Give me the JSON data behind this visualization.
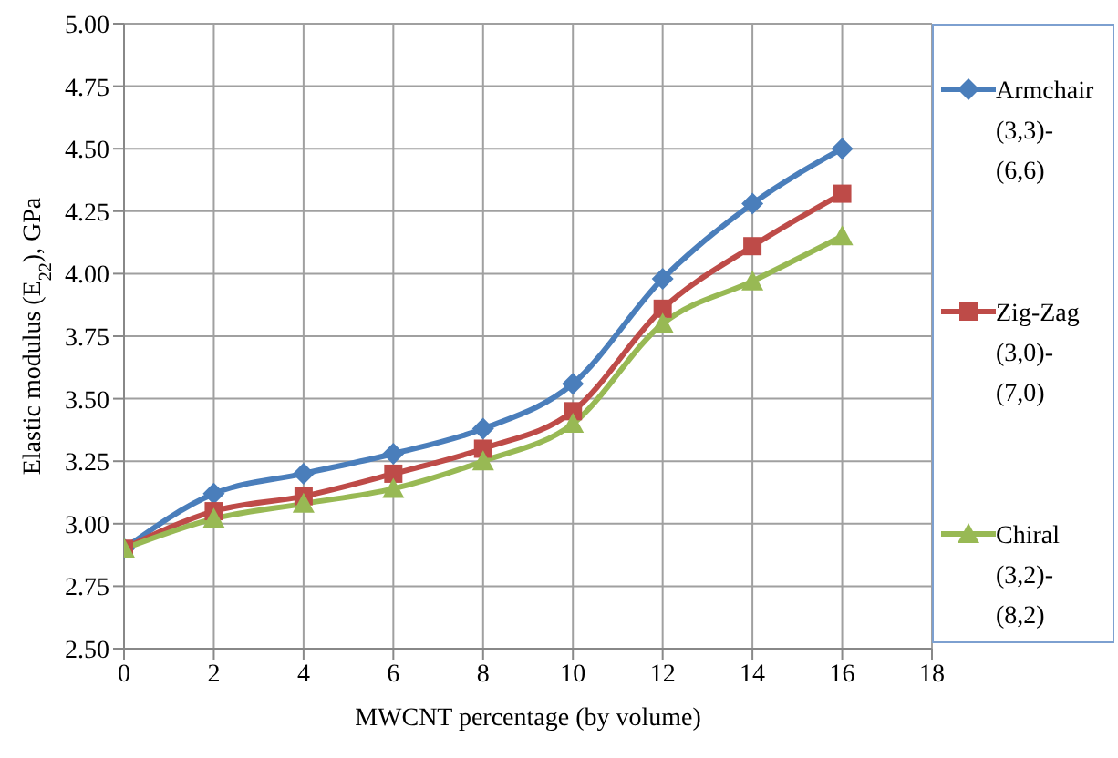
{
  "chart_data": {
    "type": "line",
    "xlabel": "MWCNT percentage (by volume)",
    "ylabel": "Elastic modulus (E$_{22}$), GPa",
    "x": [
      0,
      2,
      4,
      6,
      8,
      10,
      12,
      14,
      16
    ],
    "series": [
      {
        "name": "Armchair (3,3)-(6,6)",
        "color": "#4a7ebb",
        "marker": "diamond",
        "values": [
          2.9,
          3.12,
          3.2,
          3.28,
          3.38,
          3.56,
          3.98,
          4.28,
          4.5
        ]
      },
      {
        "name": "Zig-Zag (3,0)-(7,0)",
        "color": "#be4b48",
        "marker": "square",
        "values": [
          2.9,
          3.05,
          3.11,
          3.2,
          3.3,
          3.45,
          3.86,
          4.11,
          4.32
        ]
      },
      {
        "name": "Chiral (3,2)-(8,2)",
        "color": "#98b954",
        "marker": "triangle",
        "values": [
          2.9,
          3.02,
          3.08,
          3.14,
          3.25,
          3.4,
          3.8,
          3.97,
          4.15
        ]
      }
    ],
    "xlim": [
      0,
      18
    ],
    "xticks": [
      0,
      2,
      4,
      6,
      8,
      10,
      12,
      14,
      16,
      18
    ],
    "ylim": [
      2.5,
      5
    ],
    "yticks": [
      {
        "value": 2.5,
        "label": "2.50"
      },
      {
        "value": 2.75,
        "label": "2.75"
      },
      {
        "value": 3,
        "label": "3.00"
      },
      {
        "value": 3.25,
        "label": "3.25"
      },
      {
        "value": 3.5,
        "label": "3.50"
      },
      {
        "value": 3.75,
        "label": "3.75"
      },
      {
        "value": 4,
        "label": "4.00"
      },
      {
        "value": 4.25,
        "label": "4.25"
      },
      {
        "value": 4.5,
        "label": "4.50"
      },
      {
        "value": 4.75,
        "label": "4.75"
      },
      {
        "value": 5,
        "label": "5.00"
      }
    ],
    "grid": true,
    "legend": "right",
    "line_style": "solid"
  }
}
